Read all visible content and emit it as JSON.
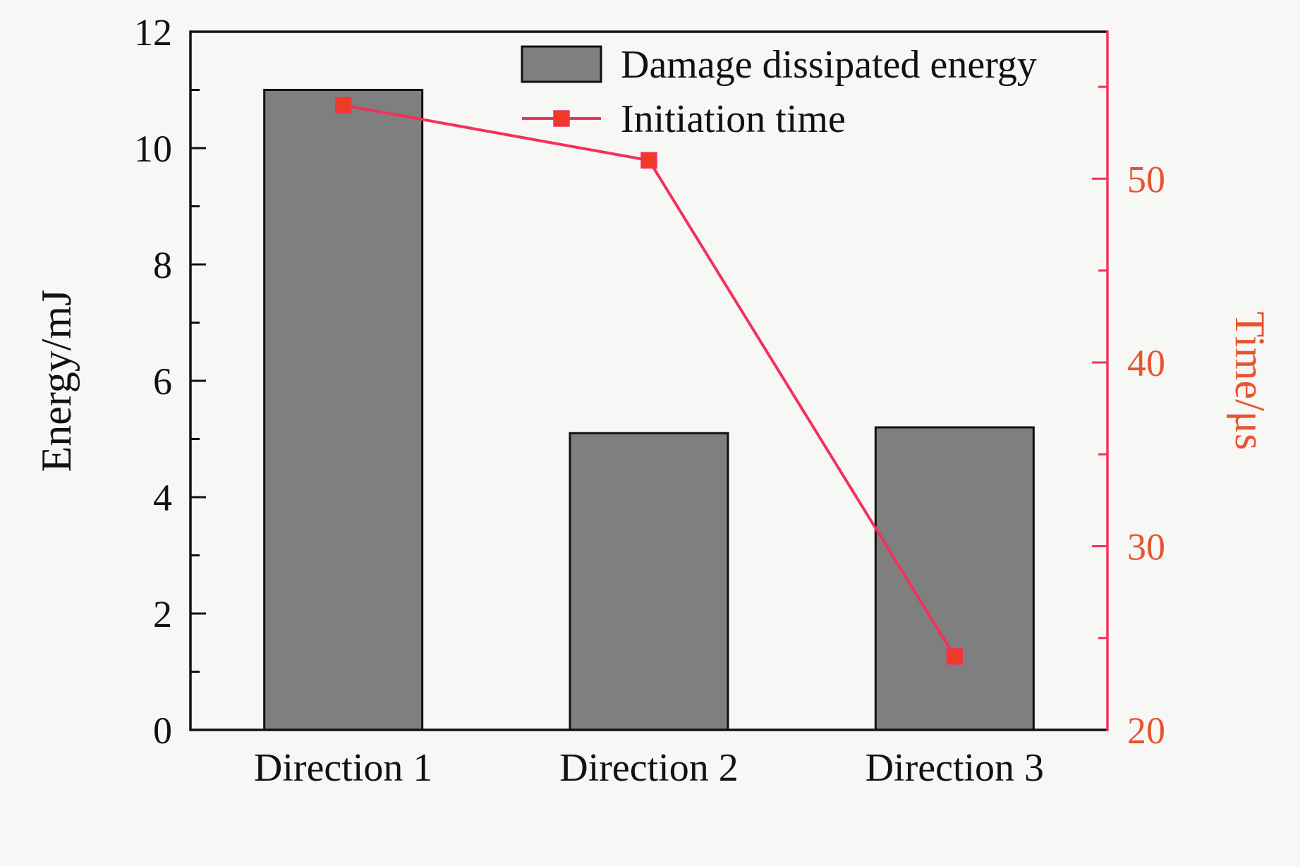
{
  "chart_data": {
    "type": "bar",
    "combined_types": [
      "bar",
      "line"
    ],
    "categories": [
      "Direction 1",
      "Direction 2",
      "Direction 3"
    ],
    "series": [
      {
        "name": "Damage dissipated energy",
        "type": "bar",
        "axis": "left",
        "values": [
          11.0,
          5.1,
          5.2
        ],
        "color": "#7f7f7f",
        "edge_color": "#111111"
      },
      {
        "name": "Initiation time",
        "type": "line",
        "axis": "right",
        "values": [
          54,
          51,
          24
        ],
        "line_color": "#f0325c",
        "marker": "square",
        "marker_color": "#ee3a26"
      }
    ],
    "title": "",
    "xlabel": "",
    "left_axis": {
      "label": "Energy/mJ",
      "min": 0,
      "max": 12,
      "ticks": [
        0,
        2,
        4,
        6,
        8,
        10,
        12
      ],
      "minor_step": 1,
      "color": "#111111"
    },
    "right_axis": {
      "label": "Time/μs",
      "min": 20,
      "max": 58,
      "ticks": [
        20,
        30,
        40,
        50
      ],
      "minor_step": 5,
      "spine_color": "#f0325c",
      "tick_label_color": "#e8542f",
      "title_color": "#e8542f"
    },
    "legend": {
      "position": "top-center-inside",
      "entries": [
        {
          "label": "Damage dissipated energy",
          "swatch": "bar"
        },
        {
          "label": "Initiation time",
          "swatch": "line-square-marker"
        }
      ]
    },
    "grid": false,
    "plot_background": "#f7f7f5"
  }
}
